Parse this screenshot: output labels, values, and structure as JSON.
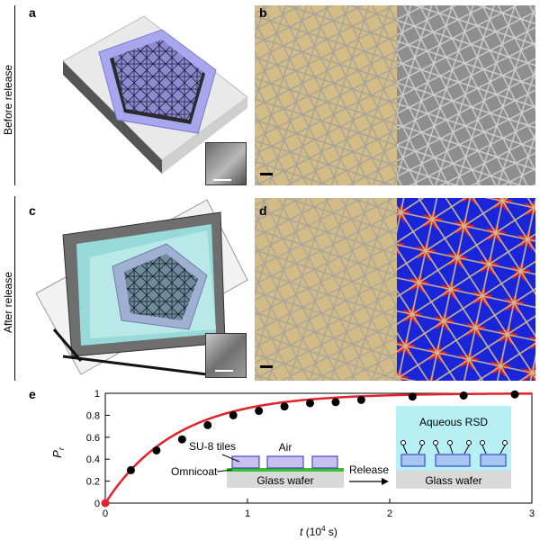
{
  "panels": {
    "a": "a",
    "b": "b",
    "c": "c",
    "d": "d",
    "e": "e"
  },
  "row_labels": {
    "before": "Before release",
    "after": "After release"
  },
  "inset_labels": {
    "su8": "SU-8 tiles",
    "air": "Air",
    "omnicoat": "Omnicoat",
    "wafer_left": "Glass wafer",
    "release": "Release",
    "aqueous": "Aqueous RSD",
    "wafer_right": "Glass wafer"
  },
  "colors": {
    "curve": "#e3212b",
    "points": "#000000",
    "tile_fill": "#c9c0ee",
    "tile_stroke": "#2a2cc8",
    "omnicoat": "#37c12f",
    "wafer": "#d9d9d9",
    "aqueous": "#b6f0f5",
    "micro_tan": "#d4bc86",
    "micro_gray": "#8e8e8e",
    "blue": "#1a24d8",
    "red": "#e01e24"
  },
  "chart_data": {
    "type": "scatter",
    "title": "",
    "xlabel_var": "t",
    "xlabel_unit": "(10",
    "xlabel_exp": "4",
    "xlabel_tail": " s)",
    "ylabel_var": "P",
    "ylabel_sub": "r",
    "xlim": [
      0,
      3
    ],
    "ylim": [
      0,
      1
    ],
    "xticks": [
      "0",
      "1",
      "2",
      "3"
    ],
    "yticks": [
      "0",
      "0.2",
      "0.4",
      "0.6",
      "0.8",
      "1"
    ],
    "series": [
      {
        "type": "scatter",
        "x": [
          0,
          0.18,
          0.36,
          0.54,
          0.72,
          0.9,
          1.08,
          1.26,
          1.44,
          1.62,
          1.8,
          2.16,
          2.52,
          2.88
        ],
        "y": [
          0,
          0.3,
          0.48,
          0.58,
          0.71,
          0.8,
          0.84,
          0.88,
          0.91,
          0.92,
          0.94,
          0.97,
          0.98,
          0.99
        ]
      },
      {
        "type": "line",
        "model": "1 - exp(-t/0.5)"
      }
    ]
  }
}
